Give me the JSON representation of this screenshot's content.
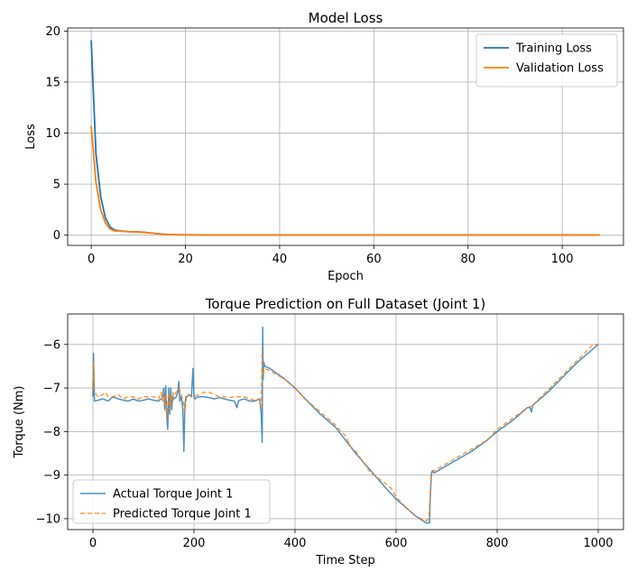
{
  "chart_data": [
    {
      "type": "line",
      "title": "Model Loss",
      "xlabel": "Epoch",
      "ylabel": "Loss",
      "xlim": [
        -5,
        113
      ],
      "ylim": [
        -1,
        20.3
      ],
      "xticks": [
        0,
        20,
        40,
        60,
        80,
        100
      ],
      "yticks": [
        0,
        5,
        10,
        15,
        20
      ],
      "grid": true,
      "legend": "top-right",
      "series": [
        {
          "name": "Training Loss",
          "color": "#1f77b4",
          "style": "solid",
          "x": [
            0,
            1,
            2,
            3,
            4,
            5,
            6,
            7,
            8,
            10,
            12,
            14,
            16,
            18,
            20,
            25,
            30,
            40,
            50,
            60,
            70,
            80,
            90,
            100,
            108
          ],
          "y": [
            19.1,
            8.0,
            3.8,
            1.7,
            0.8,
            0.5,
            0.42,
            0.38,
            0.35,
            0.32,
            0.25,
            0.15,
            0.08,
            0.05,
            0.04,
            0.03,
            0.02,
            0.02,
            0.02,
            0.02,
            0.02,
            0.02,
            0.02,
            0.02,
            0.02
          ]
        },
        {
          "name": "Validation Loss",
          "color": "#ff7f0e",
          "style": "solid",
          "x": [
            0,
            1,
            2,
            3,
            4,
            5,
            6,
            7,
            8,
            10,
            12,
            14,
            16,
            18,
            20,
            25,
            30,
            40,
            50,
            60,
            70,
            80,
            90,
            100,
            108
          ],
          "y": [
            10.7,
            5.2,
            2.5,
            1.2,
            0.6,
            0.42,
            0.4,
            0.37,
            0.34,
            0.31,
            0.24,
            0.14,
            0.07,
            0.04,
            0.03,
            0.02,
            0.02,
            0.02,
            0.02,
            0.02,
            0.02,
            0.02,
            0.02,
            0.02,
            0.02
          ]
        }
      ]
    },
    {
      "type": "line",
      "title": "Torque Prediction on Full Dataset (Joint 1)",
      "xlabel": "Time Step",
      "ylabel": "Torque (Nm)",
      "xlim": [
        -50,
        1050
      ],
      "ylim": [
        -10.25,
        -5.3
      ],
      "xticks": [
        0,
        200,
        400,
        600,
        800,
        1000
      ],
      "yticks": [
        -10,
        -9,
        -8,
        -7,
        -6
      ],
      "grid": true,
      "legend": "bottom-left",
      "series": [
        {
          "name": "Actual Torque Joint 1",
          "color": "#1f77b4",
          "style": "solid",
          "x": [
            0,
            1,
            3,
            10,
            20,
            30,
            40,
            50,
            60,
            70,
            80,
            90,
            100,
            110,
            120,
            130,
            135,
            138,
            140,
            142,
            144,
            146,
            148,
            150,
            152,
            154,
            156,
            158,
            160,
            165,
            168,
            170,
            172,
            175,
            178,
            180,
            182,
            184,
            186,
            190,
            195,
            198,
            200,
            202,
            205,
            210,
            220,
            230,
            240,
            250,
            260,
            270,
            280,
            285,
            288,
            290,
            300,
            310,
            320,
            330,
            333,
            335,
            336,
            337,
            338,
            340,
            350,
            380,
            400,
            420,
            450,
            480,
            500,
            520,
            550,
            580,
            600,
            620,
            640,
            660,
            666,
            668,
            670,
            672,
            675,
            690,
            720,
            750,
            780,
            800,
            830,
            860,
            865,
            868,
            870,
            900,
            930,
            960,
            980,
            1000
          ],
          "y": [
            -7.2,
            -6.2,
            -7.3,
            -7.28,
            -7.25,
            -7.3,
            -7.2,
            -7.25,
            -7.28,
            -7.3,
            -7.25,
            -7.3,
            -7.28,
            -7.25,
            -7.28,
            -7.3,
            -7.25,
            -7.2,
            -7.0,
            -7.5,
            -6.95,
            -7.6,
            -7.95,
            -7.0,
            -7.6,
            -7.0,
            -7.5,
            -7.2,
            -7.25,
            -7.2,
            -7.1,
            -6.85,
            -7.3,
            -7.2,
            -7.5,
            -8.45,
            -7.4,
            -7.2,
            -7.2,
            -7.15,
            -7.2,
            -6.55,
            -7.2,
            -7.25,
            -7.22,
            -7.2,
            -7.2,
            -7.22,
            -7.25,
            -7.22,
            -7.25,
            -7.28,
            -7.3,
            -7.45,
            -7.3,
            -7.28,
            -7.25,
            -7.3,
            -7.3,
            -7.25,
            -7.6,
            -8.25,
            -5.6,
            -6.8,
            -6.4,
            -6.5,
            -6.55,
            -6.8,
            -7.0,
            -7.25,
            -7.6,
            -7.9,
            -8.2,
            -8.5,
            -8.9,
            -9.3,
            -9.55,
            -9.75,
            -9.95,
            -10.1,
            -10.1,
            -9.4,
            -8.95,
            -8.9,
            -8.95,
            -8.85,
            -8.65,
            -8.45,
            -8.2,
            -8.0,
            -7.75,
            -7.45,
            -7.45,
            -7.55,
            -7.4,
            -7.1,
            -6.75,
            -6.4,
            -6.2,
            -6.0
          ]
        },
        {
          "name": "Predicted Torque Joint 1",
          "color": "#ff7f0e",
          "style": "dashed",
          "x": [
            0,
            1,
            3,
            10,
            20,
            25,
            30,
            40,
            50,
            60,
            70,
            80,
            90,
            100,
            110,
            120,
            130,
            135,
            138,
            140,
            142,
            144,
            146,
            148,
            150,
            152,
            154,
            156,
            158,
            160,
            165,
            170,
            175,
            180,
            182,
            185,
            190,
            200,
            210,
            220,
            230,
            240,
            250,
            260,
            270,
            280,
            290,
            300,
            310,
            320,
            330,
            333,
            335,
            336,
            338,
            340,
            350,
            380,
            400,
            420,
            450,
            480,
            500,
            510,
            520,
            550,
            580,
            590,
            600,
            620,
            640,
            660,
            665,
            668,
            670,
            672,
            675,
            690,
            720,
            750,
            780,
            800,
            830,
            860,
            870,
            900,
            930,
            960,
            990,
            1000
          ],
          "y": [
            -7.0,
            -6.4,
            -7.1,
            -7.2,
            -7.15,
            -7.1,
            -7.2,
            -7.2,
            -7.15,
            -7.25,
            -7.2,
            -7.2,
            -7.25,
            -7.2,
            -7.2,
            -7.2,
            -7.25,
            -7.1,
            -7.3,
            -7.1,
            -7.4,
            -7.15,
            -7.7,
            -7.4,
            -7.1,
            -7.5,
            -7.2,
            -7.4,
            -7.1,
            -7.2,
            -7.1,
            -7.0,
            -7.15,
            -7.4,
            -7.55,
            -7.2,
            -7.15,
            -7.2,
            -7.15,
            -7.1,
            -7.1,
            -7.15,
            -7.2,
            -7.2,
            -7.22,
            -7.2,
            -7.2,
            -7.2,
            -7.25,
            -7.28,
            -7.25,
            -7.5,
            -6.1,
            -6.7,
            -6.6,
            -6.55,
            -6.6,
            -6.8,
            -7.0,
            -7.25,
            -7.55,
            -7.85,
            -8.1,
            -8.35,
            -8.45,
            -8.95,
            -9.2,
            -9.3,
            -9.5,
            -9.75,
            -9.95,
            -10.05,
            -10.0,
            -9.3,
            -9.0,
            -8.95,
            -8.9,
            -8.8,
            -8.6,
            -8.4,
            -8.2,
            -7.95,
            -7.7,
            -7.45,
            -7.4,
            -7.05,
            -6.7,
            -6.35,
            -6.0,
            -6.0
          ]
        }
      ]
    }
  ]
}
